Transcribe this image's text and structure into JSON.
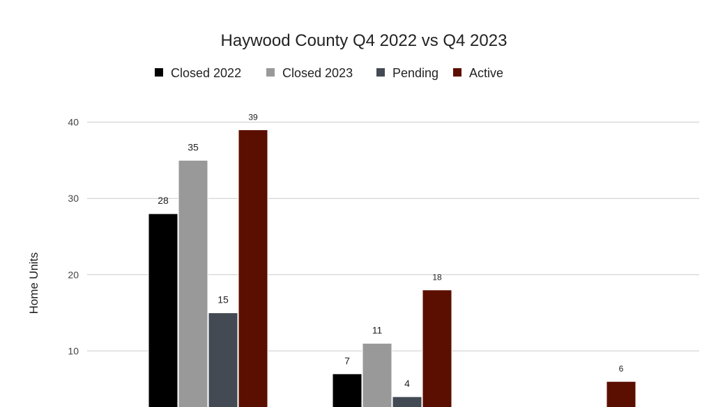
{
  "chart_data": {
    "type": "bar",
    "title": "Haywood County Q4 2022 vs Q4 2023",
    "ylabel": "Home Units",
    "ylim": [
      0,
      40
    ],
    "yticks": [
      "10",
      "20",
      "30",
      "40"
    ],
    "legend_position": "top",
    "grid": true,
    "categories": [
      "",
      "",
      ""
    ],
    "series": [
      {
        "name": "Closed  2022",
        "color": "#000000",
        "values": [
          28,
          7,
          0
        ]
      },
      {
        "name": "Closed  2023",
        "color": "#999999",
        "values": [
          35,
          11,
          0
        ]
      },
      {
        "name": "Pending",
        "color": "#434a54",
        "values": [
          15,
          4,
          0
        ]
      },
      {
        "name": "Active",
        "color": "#5b0f00",
        "values": [
          39,
          18,
          6
        ]
      }
    ]
  }
}
